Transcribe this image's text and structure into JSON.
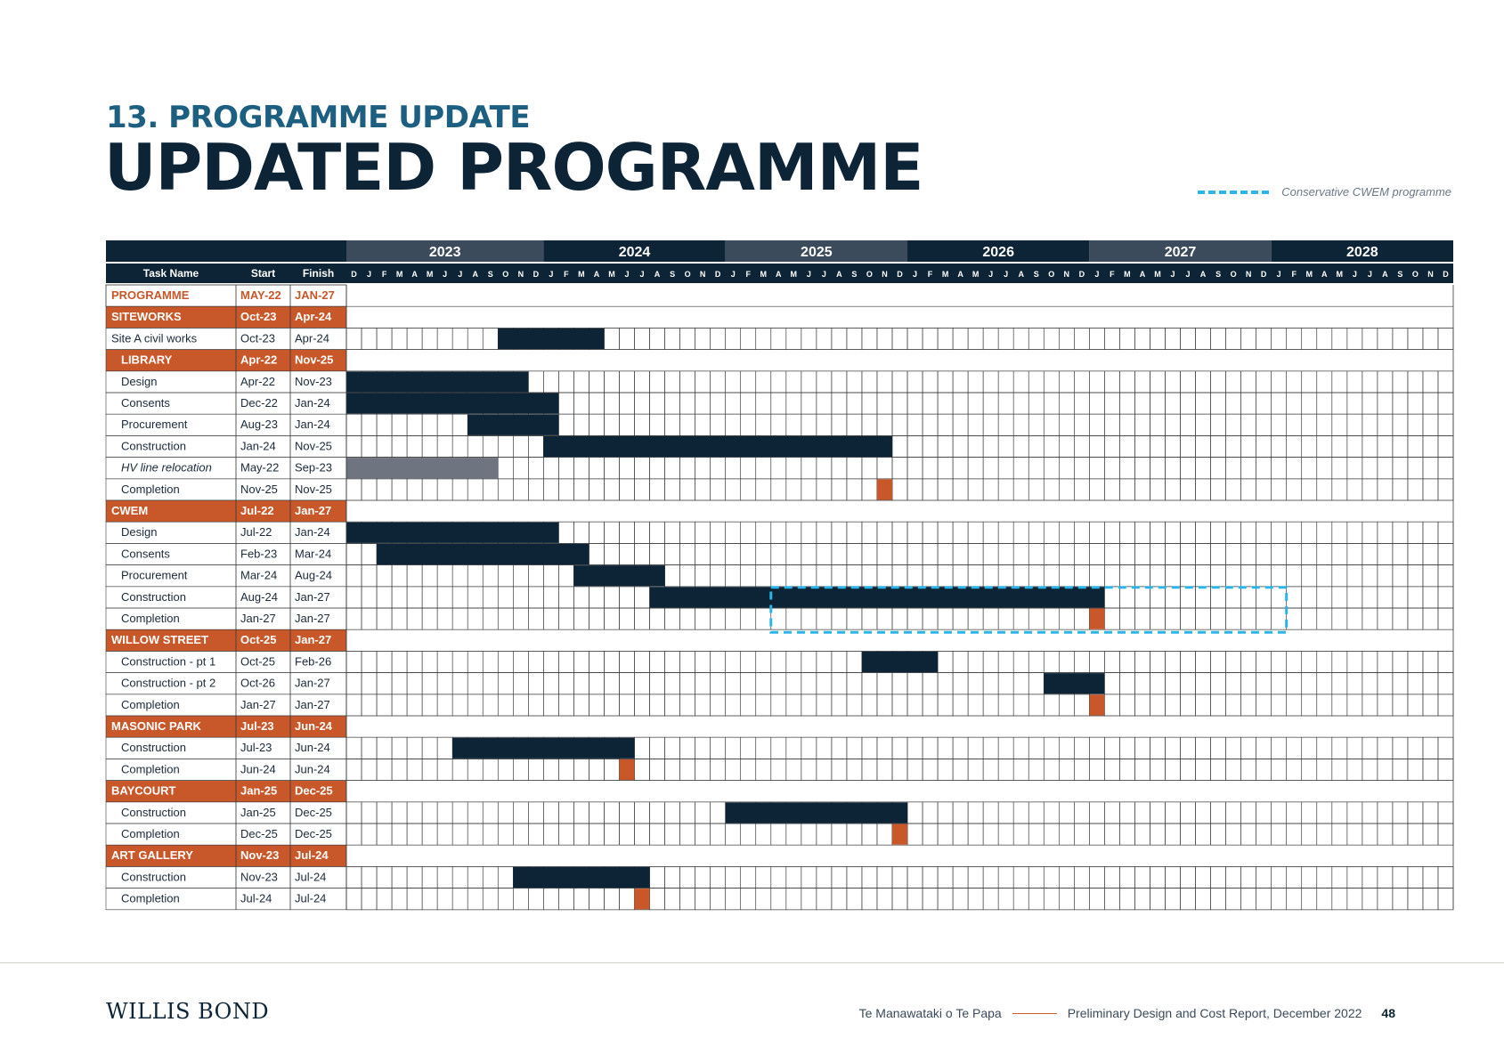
{
  "header": {
    "section": "13. PROGRAMME UPDATE",
    "title": "UPDATED PROGRAMME"
  },
  "legend": {
    "label": "Conservative CWEM programme"
  },
  "table": {
    "headers": {
      "task": "Task Name",
      "start": "Start",
      "finish": "Finish"
    }
  },
  "colors": {
    "navy": "#0d2437",
    "header_alt": "#3c4b5c",
    "orange": "#c8582a",
    "grey_bar": "#6e7480",
    "dashed": "#2ab4e8",
    "grid": "#3a3a3a"
  },
  "chart_data": {
    "type": "gantt",
    "years": [
      "2023",
      "2024",
      "2025",
      "2026",
      "2027",
      "2028"
    ],
    "months": [
      "D",
      "J",
      "F",
      "M",
      "A",
      "M",
      "J",
      "J",
      "A",
      "S",
      "O",
      "N",
      "D",
      "J",
      "F",
      "M",
      "A",
      "M",
      "J",
      "J",
      "A",
      "S",
      "O",
      "N",
      "D",
      "J",
      "F",
      "M",
      "A",
      "M",
      "J",
      "J",
      "A",
      "S",
      "O",
      "N",
      "D",
      "J",
      "F",
      "M",
      "A",
      "M",
      "J",
      "J",
      "A",
      "S",
      "O",
      "N",
      "D",
      "J",
      "F",
      "M",
      "A",
      "M",
      "J",
      "J",
      "A",
      "S",
      "O",
      "N",
      "D",
      "J",
      "F",
      "M",
      "A",
      "M",
      "J",
      "J",
      "A",
      "S",
      "O",
      "N",
      "D"
    ],
    "timeline_start": "Dec-22",
    "timeline_end": "Dec-28",
    "rows": [
      {
        "name": "PROGRAMME",
        "start": "MAY-22",
        "finish": "JAN-27",
        "kind": "programme"
      },
      {
        "name": "SITEWORKS",
        "start": "Oct-23",
        "finish": "Apr-24",
        "kind": "group"
      },
      {
        "name": "Site A civil works",
        "start": "Oct-23",
        "finish": "Apr-24",
        "kind": "task",
        "indent": 0,
        "bar": [
          "Oct-23",
          "Apr-24"
        ]
      },
      {
        "name": "LIBRARY",
        "start": "Apr-22",
        "finish": "Nov-25",
        "kind": "group",
        "indent": 1
      },
      {
        "name": "Design",
        "start": "Apr-22",
        "finish": "Nov-23",
        "kind": "task",
        "indent": 1,
        "bar": [
          "Dec-22",
          "Nov-23"
        ]
      },
      {
        "name": "Consents",
        "start": "Dec-22",
        "finish": "Jan-24",
        "kind": "task",
        "indent": 1,
        "bar": [
          "Dec-22",
          "Jan-24"
        ]
      },
      {
        "name": "Procurement",
        "start": "Aug-23",
        "finish": "Jan-24",
        "kind": "task",
        "indent": 1,
        "bar": [
          "Aug-23",
          "Jan-24"
        ]
      },
      {
        "name": "Construction",
        "start": "Jan-24",
        "finish": "Nov-25",
        "kind": "task",
        "indent": 1,
        "bar": [
          "Jan-24",
          "Nov-25"
        ]
      },
      {
        "name": "HV line relocation",
        "start": "May-22",
        "finish": "Sep-23",
        "kind": "task",
        "indent": 1,
        "italic": true,
        "bar": [
          "Dec-22",
          "Sep-23"
        ],
        "grey": true
      },
      {
        "name": "Completion",
        "start": "Nov-25",
        "finish": "Nov-25",
        "kind": "task",
        "indent": 1,
        "milestone": "Nov-25"
      },
      {
        "name": "CWEM",
        "start": "Jul-22",
        "finish": "Jan-27",
        "kind": "group"
      },
      {
        "name": "Design",
        "start": "Jul-22",
        "finish": "Jan-24",
        "kind": "task",
        "indent": 1,
        "bar": [
          "Dec-22",
          "Jan-24"
        ]
      },
      {
        "name": "Consents",
        "start": "Feb-23",
        "finish": "Mar-24",
        "kind": "task",
        "indent": 1,
        "bar": [
          "Feb-23",
          "Mar-24"
        ]
      },
      {
        "name": "Procurement",
        "start": "Mar-24",
        "finish": "Aug-24",
        "kind": "task",
        "indent": 1,
        "bar": [
          "Mar-24",
          "Aug-24"
        ]
      },
      {
        "name": "Construction",
        "start": "Aug-24",
        "finish": "Jan-27",
        "kind": "task",
        "indent": 1,
        "bar": [
          "Aug-24",
          "Jan-27"
        ]
      },
      {
        "name": "Completion",
        "start": "Jan-27",
        "finish": "Jan-27",
        "kind": "task",
        "indent": 1,
        "milestone": "Jan-27"
      },
      {
        "name": "WILLOW STREET",
        "start": "Oct-25",
        "finish": "Jan-27",
        "kind": "group"
      },
      {
        "name": "Construction - pt 1",
        "start": "Oct-25",
        "finish": "Feb-26",
        "kind": "task",
        "indent": 1,
        "bar": [
          "Oct-25",
          "Feb-26"
        ]
      },
      {
        "name": "Construction - pt 2",
        "start": "Oct-26",
        "finish": "Jan-27",
        "kind": "task",
        "indent": 1,
        "bar": [
          "Oct-26",
          "Jan-27"
        ]
      },
      {
        "name": "Completion",
        "start": "Jan-27",
        "finish": "Jan-27",
        "kind": "task",
        "indent": 1,
        "milestone": "Jan-27"
      },
      {
        "name": "MASONIC PARK",
        "start": "Jul-23",
        "finish": "Jun-24",
        "kind": "group"
      },
      {
        "name": "Construction",
        "start": "Jul-23",
        "finish": "Jun-24",
        "kind": "task",
        "indent": 1,
        "bar": [
          "Jul-23",
          "Jun-24"
        ]
      },
      {
        "name": "Completion",
        "start": "Jun-24",
        "finish": "Jun-24",
        "kind": "task",
        "indent": 1,
        "milestone": "Jun-24"
      },
      {
        "name": "BAYCOURT",
        "start": "Jan-25",
        "finish": "Dec-25",
        "kind": "group"
      },
      {
        "name": "Construction",
        "start": "Jan-25",
        "finish": "Dec-25",
        "kind": "task",
        "indent": 1,
        "bar": [
          "Jan-25",
          "Dec-25"
        ]
      },
      {
        "name": "Completion",
        "start": "Dec-25",
        "finish": "Dec-25",
        "kind": "task",
        "indent": 1,
        "milestone": "Dec-25"
      },
      {
        "name": "ART GALLERY",
        "start": "Nov-23",
        "finish": "Jul-24",
        "kind": "group"
      },
      {
        "name": "Construction",
        "start": "Nov-23",
        "finish": "Jul-24",
        "kind": "task",
        "indent": 1,
        "bar": [
          "Nov-23",
          "Jul-24"
        ]
      },
      {
        "name": "Completion",
        "start": "Jul-24",
        "finish": "Jul-24",
        "kind": "task",
        "indent": 1,
        "milestone": "Jul-24"
      }
    ],
    "conservative_cwem": {
      "label": "Conservative CWEM programme",
      "start": "Apr-25",
      "finish": "Jan-28"
    }
  },
  "footer": {
    "logo": "WILLIS BOND",
    "project": "Te Manawataki o Te Papa",
    "report": "Preliminary Design and Cost Report,  December 2022",
    "page": "48"
  }
}
